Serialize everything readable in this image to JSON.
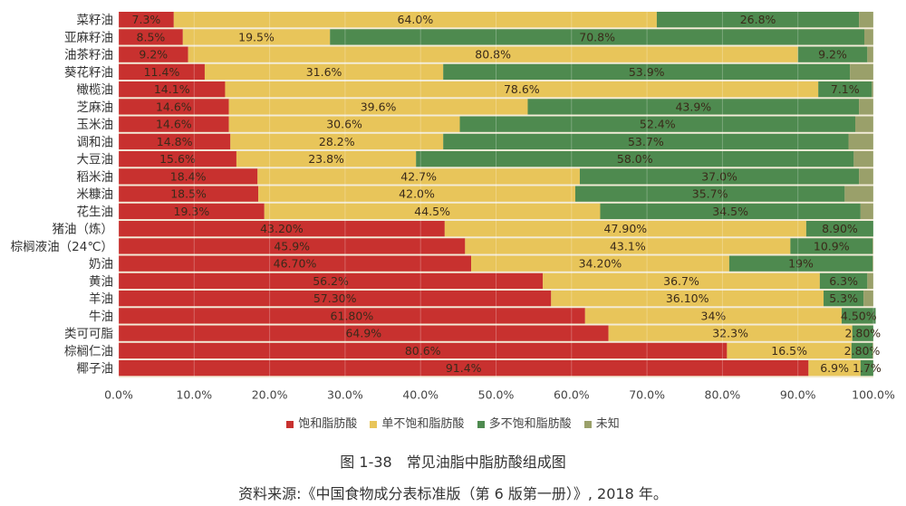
{
  "chart_data": {
    "type": "bar",
    "orientation": "horizontal",
    "stacked": true,
    "categories": [
      "菜籽油",
      "亚麻籽油",
      "油茶籽油",
      "葵花籽油",
      "橄榄油",
      "芝麻油",
      "玉米油",
      "调和油",
      "大豆油",
      "稻米油",
      "米糠油",
      "花生油",
      "猪油（炼）",
      "棕榈液油（24℃）",
      "奶油",
      "黄油",
      "羊油",
      "牛油",
      "类可可脂",
      "棕榈仁油",
      "椰子油"
    ],
    "series": [
      {
        "name": "饱和脂肪酸",
        "color": "#c8312f",
        "values": [
          7.3,
          8.5,
          9.2,
          11.4,
          14.1,
          14.6,
          14.6,
          14.8,
          15.6,
          18.4,
          18.5,
          19.3,
          43.2,
          45.9,
          46.7,
          56.2,
          57.3,
          61.8,
          64.9,
          80.6,
          91.4
        ],
        "labels": [
          "7.3%",
          "8.5%",
          "9.2%",
          "11.4%",
          "14.1%",
          "14.6%",
          "14.6%",
          "14.8%",
          "15.6%",
          "18.4%",
          "18.5%",
          "19.3%",
          "43.20%",
          "45.9%",
          "46.70%",
          "56.2%",
          "57.30%",
          "61.80%",
          "64.9%",
          "80.6%",
          "91.4%"
        ]
      },
      {
        "name": "单不饱和脂肪酸",
        "color": "#e8c55a",
        "values": [
          64.0,
          19.5,
          80.8,
          31.6,
          78.6,
          39.6,
          30.6,
          28.2,
          23.8,
          42.7,
          42.0,
          44.5,
          47.9,
          43.1,
          34.2,
          36.7,
          36.1,
          34,
          32.3,
          16.5,
          6.9
        ],
        "labels": [
          "64.0%",
          "19.5%",
          "80.8%",
          "31.6%",
          "78.6%",
          "39.6%",
          "30.6%",
          "28.2%",
          "23.8%",
          "42.7%",
          "42.0%",
          "44.5%",
          "47.90%",
          "43.1%",
          "34.20%",
          "36.7%",
          "36.10%",
          "34%",
          "32.3%",
          "16.5%",
          "6.9%"
        ]
      },
      {
        "name": "多不饱和脂肪酸",
        "color": "#4e8a4f",
        "values": [
          26.8,
          70.8,
          9.2,
          53.9,
          7.1,
          43.9,
          52.4,
          53.7,
          58.0,
          37.0,
          35.7,
          34.5,
          8.9,
          10.9,
          19,
          6.3,
          5.3,
          4.5,
          2.8,
          2.8,
          1.7
        ],
        "labels": [
          "26.8%",
          "70.8%",
          "9.2%",
          "53.9%",
          "7.1%",
          "43.9%",
          "52.4%",
          "53.7%",
          "58.0%",
          "37.0%",
          "35.7%",
          "34.5%",
          "8.90%",
          "10.9%",
          "19%",
          "6.3%",
          "5.3%",
          "4.50%",
          "2.80%",
          "2.80%",
          "1.7%"
        ]
      },
      {
        "name": "未知",
        "color": "#9aa06a"
      }
    ],
    "xaxis": {
      "range": [
        0,
        100
      ],
      "ticks": [
        "0.0%",
        "10.0%",
        "20.0%",
        "30.0%",
        "40.0%",
        "50.0%",
        "60.0%",
        "70.0%",
        "80.0%",
        "90.0%",
        "100.0%"
      ]
    },
    "grid": true,
    "legend": "bottom"
  },
  "caption": "图 1-38　常见油脂中脂肪酸组成图",
  "source": "资料来源:《中国食物成分表标准版（第 6 版第一册）》, 2018 年。"
}
